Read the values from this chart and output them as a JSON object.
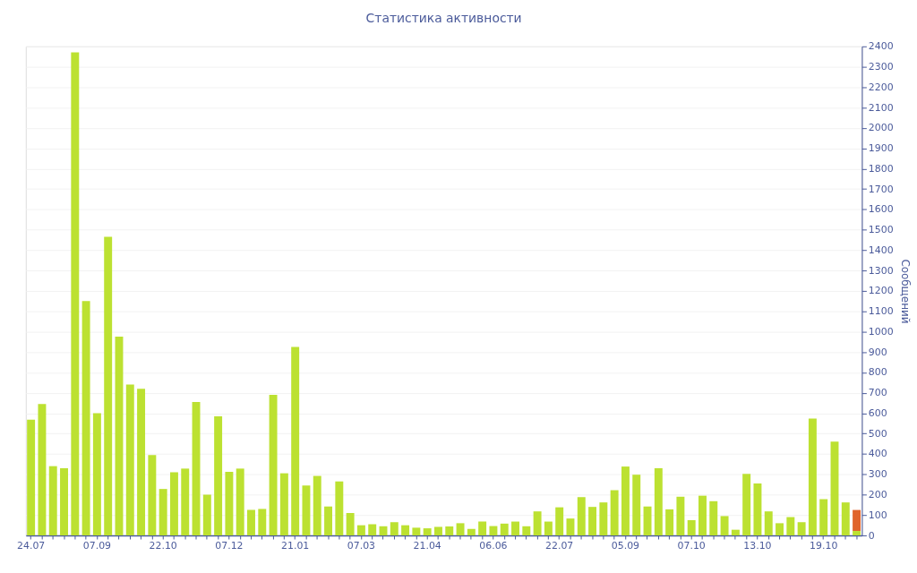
{
  "chart_data": {
    "type": "bar",
    "title": "Статистика активности",
    "ylabel": "Сообщений",
    "categories": [
      "24.07",
      null,
      null,
      null,
      null,
      null,
      "07.09",
      null,
      null,
      null,
      null,
      null,
      "22.10",
      null,
      null,
      null,
      null,
      null,
      "07.12",
      null,
      null,
      null,
      null,
      null,
      "21.01",
      null,
      null,
      null,
      null,
      null,
      "07.03",
      null,
      null,
      null,
      null,
      null,
      "21.04",
      null,
      null,
      null,
      null,
      null,
      "06.06",
      null,
      null,
      null,
      null,
      null,
      "22.07",
      null,
      null,
      null,
      null,
      null,
      "05.09",
      null,
      null,
      null,
      null,
      null,
      "07.10",
      null,
      null,
      null,
      null,
      null,
      "13.10",
      null,
      null,
      null,
      null,
      null,
      "19.10",
      null,
      null,
      null
    ],
    "stacked": true,
    "series": [
      {
        "color": "#bce131",
        "values": [
          568,
          645,
          340,
          330,
          2370,
          1150,
          600,
          1465,
          975,
          740,
          720,
          395,
          228,
          310,
          328,
          655,
          200,
          585,
          312,
          328,
          125,
          130,
          690,
          305,
          925,
          245,
          292,
          142,
          265,
          110,
          50,
          55,
          45,
          65,
          50,
          38,
          35,
          42,
          44,
          60,
          32,
          68,
          46,
          58,
          68,
          45,
          118,
          68,
          138,
          83,
          188,
          140,
          162,
          222,
          338,
          298,
          142,
          330,
          128,
          190,
          75,
          195,
          168,
          95,
          28,
          302,
          255,
          118,
          60,
          90,
          65,
          573,
          178,
          460,
          162,
          22
        ]
      },
      {
        "color": "#e0642c",
        "values": [
          null,
          null,
          null,
          null,
          null,
          null,
          null,
          null,
          null,
          null,
          null,
          null,
          null,
          null,
          null,
          null,
          null,
          null,
          null,
          null,
          null,
          null,
          null,
          null,
          null,
          null,
          null,
          null,
          null,
          null,
          null,
          null,
          null,
          null,
          null,
          null,
          null,
          null,
          null,
          null,
          null,
          null,
          null,
          null,
          null,
          null,
          null,
          null,
          null,
          null,
          null,
          null,
          null,
          null,
          null,
          null,
          null,
          null,
          null,
          null,
          null,
          null,
          null,
          null,
          null,
          null,
          null,
          null,
          null,
          null,
          null,
          null,
          null,
          null,
          null,
          103
        ]
      }
    ],
    "ylim": [
      0,
      2400
    ],
    "yticks": [
      0,
      100,
      200,
      300,
      400,
      500,
      600,
      700,
      800,
      900,
      1000,
      1100,
      1200,
      1300,
      1400,
      1500,
      1600,
      1700,
      1800,
      1900,
      2000,
      2100,
      2200,
      2300,
      2400
    ],
    "grid": "y",
    "legend": false
  }
}
